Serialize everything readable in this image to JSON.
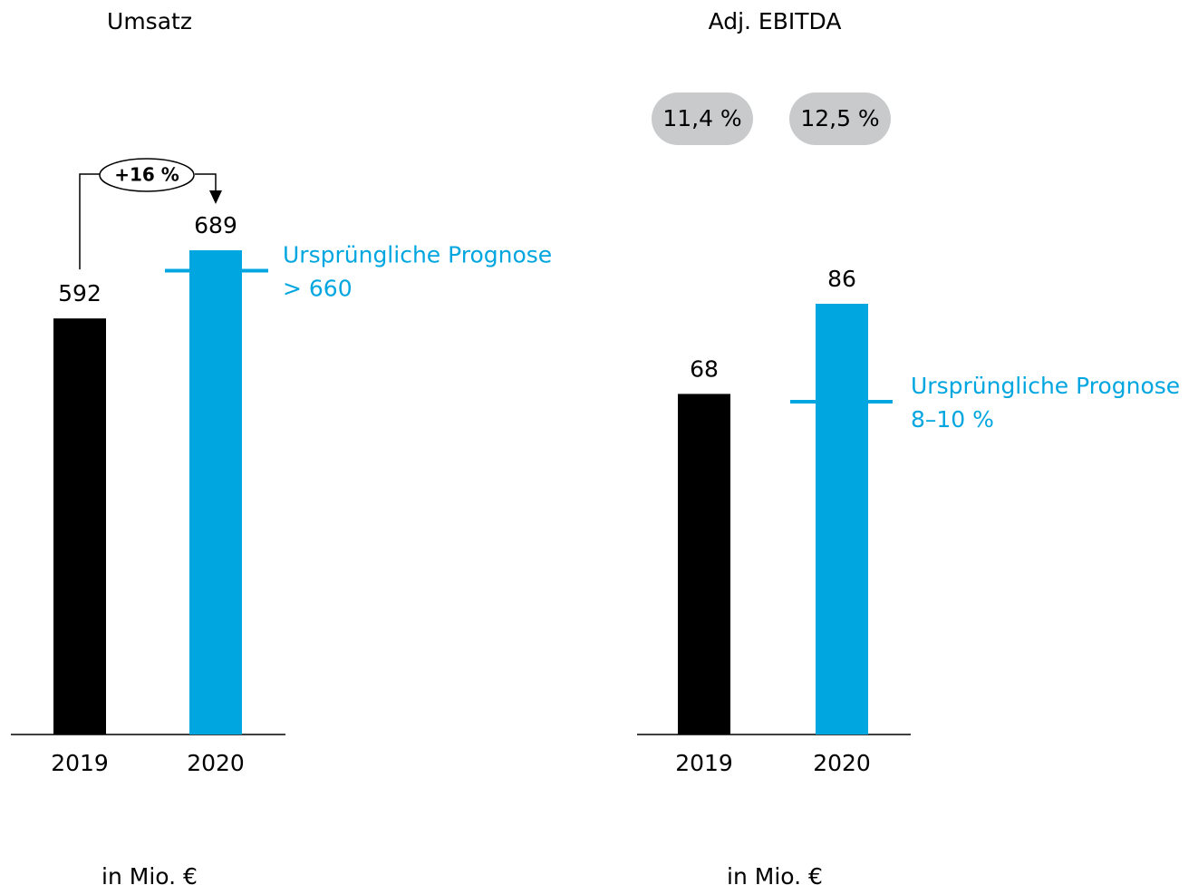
{
  "chart_data": [
    {
      "type": "bar",
      "title": "Umsatz",
      "categories": [
        "2019",
        "2020"
      ],
      "values": [
        592,
        689
      ],
      "colors": [
        "#000000",
        "#00a6e0"
      ],
      "annotation": "+16 %",
      "forecast": {
        "name": "Ursprüngliche Prognose",
        "value": 660,
        "label": "> 660",
        "color": "#00a6e0"
      },
      "unit": "in Mio. €"
    },
    {
      "type": "bar",
      "title": "Adj. EBITDA",
      "categories": [
        "2019",
        "2020"
      ],
      "values": [
        68,
        86
      ],
      "colors": [
        "#000000",
        "#00a6e0"
      ],
      "margins": [
        "11,4 %",
        "12,5 %"
      ],
      "forecast": {
        "name": "Ursprüngliche Prognose",
        "label": "8–10 %",
        "color": "#00a6e0"
      },
      "unit": "in Mio. €"
    }
  ]
}
